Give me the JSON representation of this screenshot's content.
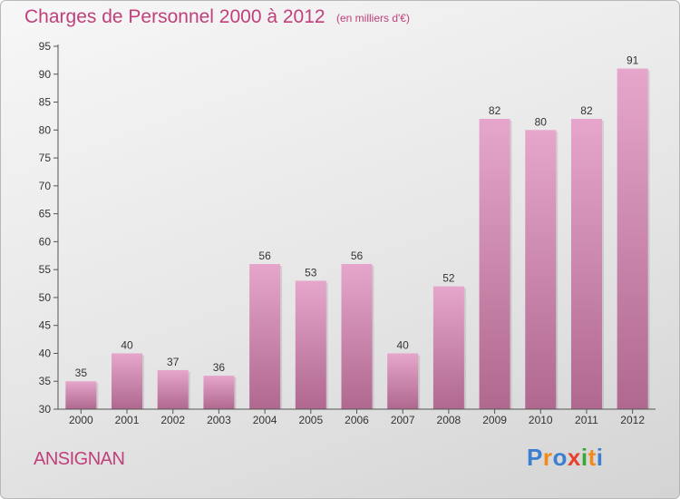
{
  "header": {
    "title": "Charges de Personnel 2000 à 2012",
    "subtitle": "(en milliers d'€)"
  },
  "footer": {
    "commune": "ANSIGNAN",
    "logo_text": "Proxiti",
    "logo_colors": [
      "#3a7fd0",
      "#f08a1a",
      "#3a7fd0",
      "#e8402a",
      "#3aa63a",
      "#f08a1a",
      "#3a7fd0"
    ]
  },
  "chart_data": {
    "type": "bar",
    "categories": [
      "2000",
      "2001",
      "2002",
      "2003",
      "2004",
      "2005",
      "2006",
      "2007",
      "2008",
      "2009",
      "2010",
      "2011",
      "2012"
    ],
    "values": [
      35,
      40,
      37,
      36,
      56,
      53,
      56,
      40,
      52,
      82,
      80,
      82,
      91
    ],
    "title": "Charges de Personnel 2000 à 2012",
    "subtitle": "(en milliers d'€)",
    "ylim": [
      30,
      95
    ],
    "yticks": [
      30,
      35,
      40,
      45,
      50,
      55,
      60,
      65,
      70,
      75,
      80,
      85,
      90,
      95
    ],
    "grid": false,
    "bar_color_top": "#e6a6cc",
    "bar_color_bottom": "#b0688e",
    "text_color": "#c0407c"
  }
}
